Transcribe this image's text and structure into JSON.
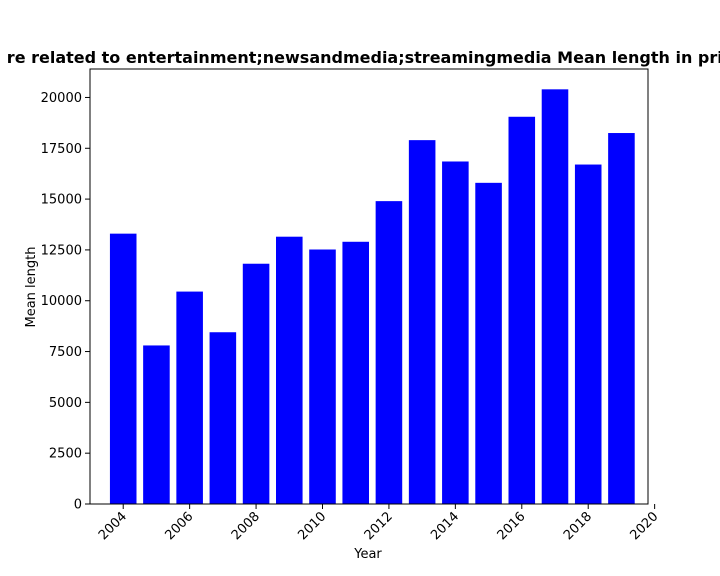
{
  "chart_data": {
    "type": "bar",
    "title": "re related to entertainment;newsandmedia;streamingmedia Mean length in priv",
    "xlabel": "Year",
    "ylabel": "Mean length",
    "x": [
      2004,
      2005,
      2006,
      2007,
      2008,
      2009,
      2010,
      2011,
      2012,
      2013,
      2014,
      2015,
      2016,
      2017,
      2018,
      2019
    ],
    "values": [
      13300,
      7800,
      10450,
      8450,
      11820,
      13150,
      12520,
      12900,
      14900,
      17900,
      16850,
      15800,
      19050,
      20400,
      16700,
      18250
    ],
    "xlim": [
      2003.0,
      2019.8
    ],
    "ylim": [
      0,
      21400
    ],
    "xticks": [
      "2004",
      "2006",
      "2008",
      "2010",
      "2012",
      "2014",
      "2016",
      "2018",
      "2020"
    ],
    "yticks": [
      "0",
      "2500",
      "5000",
      "7500",
      "10000",
      "12500",
      "15000",
      "17500",
      "20000"
    ],
    "bar_color": "#0000ff",
    "grid": false,
    "legend": "none"
  }
}
